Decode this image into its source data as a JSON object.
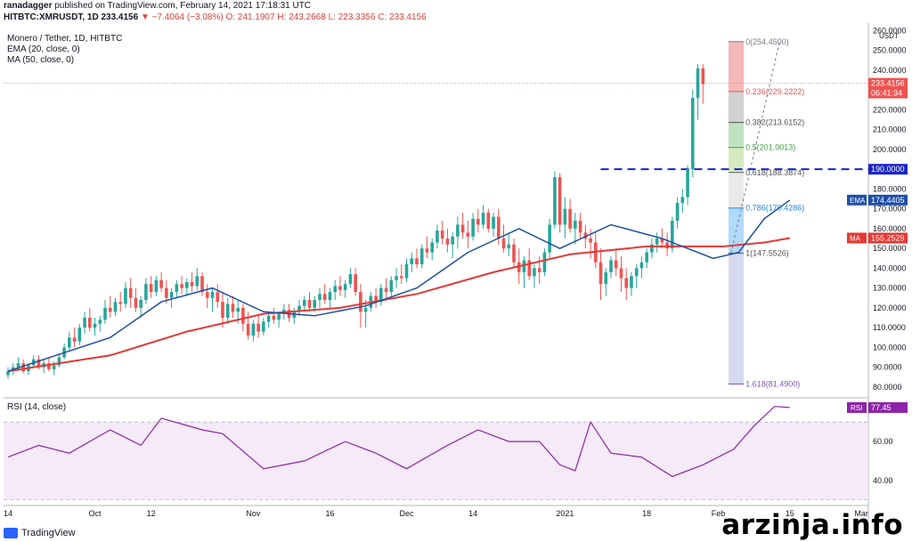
{
  "header": {
    "author": "ranadagger",
    "published": "published on TradingView.com, February 14, 2021 17:18:31 UTC",
    "symbol": "HITBTC:XMRUSDT, 1D",
    "last": "233.4156",
    "change": "▼ −7.4064 (−3.08%)",
    "o": "O: 241.1907",
    "h": "H: 243.2668",
    "lo": "L: 223.3356",
    "c": "C: 233.4156"
  },
  "legend": {
    "title": "Monero / Tether, 1D, HITBTC",
    "ema": "EMA (20, close, 0)",
    "ma": "MA (50, close, 0)",
    "rsi": "RSI (14, close)"
  },
  "footer": {
    "brand": "TradingView",
    "watermark": "arzinja.info"
  },
  "colors": {
    "up": "#26a69a",
    "down": "#ef5350",
    "ema": "#1e4fa8",
    "ma": "#e53935",
    "rsi": "#8e24aa",
    "support": "#1a24c9"
  },
  "chart_data": {
    "type": "candlestick",
    "currency_label": "USDT",
    "ylim": [
      75,
      262
    ],
    "y_ticks": [
      80,
      90,
      100,
      110,
      120,
      130,
      140,
      150,
      160,
      170,
      180,
      190,
      200,
      210,
      220,
      230,
      240,
      250,
      260
    ],
    "x_ticks": [
      {
        "label": "14",
        "day": 0
      },
      {
        "label": "Oct",
        "day": 17
      },
      {
        "label": "12",
        "day": 28
      },
      {
        "label": "Nov",
        "day": 48
      },
      {
        "label": "16",
        "day": 63
      },
      {
        "label": "Dec",
        "day": 78
      },
      {
        "label": "14",
        "day": 91
      },
      {
        "label": "2021",
        "day": 109
      },
      {
        "label": "18",
        "day": 125
      },
      {
        "label": "Feb",
        "day": 139
      },
      {
        "label": "15",
        "day": 153
      },
      {
        "label": "Mar",
        "day": 167
      }
    ],
    "last_day": 153,
    "ohlc": [
      [
        86,
        90,
        84,
        88
      ],
      [
        88,
        92,
        86,
        90
      ],
      [
        90,
        95,
        88,
        92
      ],
      [
        92,
        94,
        87,
        88
      ],
      [
        88,
        92,
        86,
        91
      ],
      [
        91,
        96,
        90,
        94
      ],
      [
        94,
        96,
        89,
        90
      ],
      [
        90,
        94,
        87,
        92
      ],
      [
        92,
        95,
        88,
        89
      ],
      [
        89,
        93,
        86,
        91
      ],
      [
        91,
        97,
        90,
        95
      ],
      [
        95,
        102,
        94,
        100
      ],
      [
        100,
        108,
        98,
        105
      ],
      [
        105,
        110,
        100,
        103
      ],
      [
        103,
        112,
        101,
        110
      ],
      [
        110,
        118,
        107,
        115
      ],
      [
        115,
        120,
        108,
        110
      ],
      [
        110,
        115,
        106,
        112
      ],
      [
        112,
        116,
        108,
        114
      ],
      [
        114,
        124,
        112,
        120
      ],
      [
        120,
        126,
        115,
        118
      ],
      [
        118,
        125,
        116,
        123
      ],
      [
        123,
        128,
        118,
        122
      ],
      [
        122,
        133,
        120,
        130
      ],
      [
        130,
        135,
        120,
        125
      ],
      [
        125,
        130,
        118,
        120
      ],
      [
        120,
        126,
        115,
        124
      ],
      [
        124,
        135,
        122,
        132
      ],
      [
        132,
        136,
        125,
        128
      ],
      [
        128,
        136,
        126,
        134
      ],
      [
        134,
        138,
        128,
        130
      ],
      [
        130,
        134,
        122,
        125
      ],
      [
        125,
        130,
        120,
        128
      ],
      [
        128,
        134,
        125,
        132
      ],
      [
        132,
        136,
        127,
        130
      ],
      [
        130,
        135,
        126,
        133
      ],
      [
        133,
        138,
        128,
        131
      ],
      [
        131,
        140,
        129,
        136
      ],
      [
        136,
        138,
        126,
        128
      ],
      [
        128,
        132,
        120,
        125
      ],
      [
        125,
        130,
        118,
        128
      ],
      [
        128,
        132,
        120,
        123
      ],
      [
        123,
        128,
        110,
        115
      ],
      [
        115,
        125,
        112,
        122
      ],
      [
        122,
        126,
        115,
        118
      ],
      [
        118,
        124,
        112,
        120
      ],
      [
        120,
        122,
        108,
        112
      ],
      [
        112,
        118,
        104,
        106
      ],
      [
        106,
        114,
        103,
        112
      ],
      [
        112,
        116,
        105,
        108
      ],
      [
        108,
        115,
        106,
        113
      ],
      [
        113,
        118,
        110,
        116
      ],
      [
        116,
        120,
        112,
        114
      ],
      [
        114,
        118,
        110,
        117
      ],
      [
        117,
        122,
        114,
        119
      ],
      [
        119,
        122,
        113,
        115
      ],
      [
        115,
        120,
        112,
        118
      ],
      [
        118,
        124,
        116,
        121
      ],
      [
        121,
        126,
        118,
        124
      ],
      [
        124,
        128,
        118,
        120
      ],
      [
        120,
        126,
        118,
        124
      ],
      [
        124,
        130,
        120,
        127
      ],
      [
        127,
        132,
        122,
        124
      ],
      [
        124,
        130,
        120,
        128
      ],
      [
        128,
        134,
        124,
        131
      ],
      [
        131,
        136,
        126,
        129
      ],
      [
        129,
        134,
        125,
        132
      ],
      [
        132,
        140,
        130,
        137
      ],
      [
        137,
        140,
        126,
        128
      ],
      [
        128,
        132,
        110,
        118
      ],
      [
        118,
        124,
        110,
        120
      ],
      [
        120,
        128,
        118,
        126
      ],
      [
        126,
        130,
        120,
        123
      ],
      [
        123,
        132,
        121,
        130
      ],
      [
        130,
        135,
        125,
        128
      ],
      [
        128,
        136,
        126,
        134
      ],
      [
        134,
        140,
        130,
        136
      ],
      [
        136,
        142,
        132,
        135
      ],
      [
        135,
        145,
        133,
        142
      ],
      [
        142,
        148,
        138,
        145
      ],
      [
        145,
        150,
        140,
        142
      ],
      [
        142,
        152,
        140,
        150
      ],
      [
        150,
        156,
        145,
        148
      ],
      [
        148,
        155,
        144,
        153
      ],
      [
        153,
        162,
        150,
        159
      ],
      [
        159,
        164,
        152,
        155
      ],
      [
        155,
        160,
        148,
        152
      ],
      [
        152,
        158,
        145,
        156
      ],
      [
        156,
        166,
        150,
        162
      ],
      [
        162,
        168,
        155,
        158
      ],
      [
        158,
        164,
        150,
        156
      ],
      [
        156,
        168,
        154,
        165
      ],
      [
        165,
        170,
        158,
        162
      ],
      [
        162,
        172,
        160,
        168
      ],
      [
        168,
        170,
        158,
        160
      ],
      [
        160,
        168,
        156,
        166
      ],
      [
        166,
        170,
        152,
        155
      ],
      [
        155,
        162,
        148,
        150
      ],
      [
        150,
        158,
        146,
        152
      ],
      [
        152,
        155,
        140,
        143
      ],
      [
        143,
        150,
        132,
        138
      ],
      [
        138,
        146,
        130,
        144
      ],
      [
        144,
        150,
        134,
        136
      ],
      [
        136,
        142,
        130,
        140
      ],
      [
        140,
        146,
        132,
        138
      ],
      [
        138,
        150,
        136,
        148
      ],
      [
        148,
        165,
        145,
        162
      ],
      [
        162,
        189,
        160,
        186
      ],
      [
        186,
        188,
        158,
        162
      ],
      [
        162,
        176,
        155,
        170
      ],
      [
        170,
        175,
        158,
        160
      ],
      [
        160,
        168,
        152,
        164
      ],
      [
        164,
        168,
        155,
        158
      ],
      [
        158,
        162,
        150,
        155
      ],
      [
        155,
        160,
        145,
        153
      ],
      [
        153,
        158,
        140,
        143
      ],
      [
        143,
        150,
        124,
        132
      ],
      [
        132,
        140,
        126,
        138
      ],
      [
        138,
        146,
        135,
        144
      ],
      [
        144,
        150,
        136,
        140
      ],
      [
        140,
        146,
        128,
        135
      ],
      [
        135,
        140,
        124,
        130
      ],
      [
        130,
        138,
        126,
        136
      ],
      [
        136,
        142,
        130,
        140
      ],
      [
        140,
        146,
        135,
        143
      ],
      [
        143,
        150,
        140,
        148
      ],
      [
        148,
        155,
        145,
        152
      ],
      [
        152,
        158,
        148,
        155
      ],
      [
        155,
        160,
        150,
        153
      ],
      [
        153,
        158,
        146,
        150
      ],
      [
        150,
        166,
        148,
        164
      ],
      [
        164,
        176,
        160,
        173
      ],
      [
        173,
        180,
        168,
        176
      ],
      [
        176,
        192,
        172,
        190
      ],
      [
        190,
        230,
        186,
        226
      ],
      [
        226,
        243,
        215,
        241
      ],
      [
        241,
        243,
        223,
        233
      ]
    ],
    "ema20_points": [
      [
        0,
        88
      ],
      [
        20,
        105
      ],
      [
        30,
        123
      ],
      [
        40,
        130
      ],
      [
        50,
        118
      ],
      [
        60,
        116
      ],
      [
        70,
        121
      ],
      [
        80,
        130
      ],
      [
        90,
        148
      ],
      [
        100,
        160
      ],
      [
        108,
        150
      ],
      [
        118,
        162
      ],
      [
        128,
        155
      ],
      [
        138,
        145
      ],
      [
        143,
        148
      ],
      [
        148,
        165
      ],
      [
        153,
        174.44
      ]
    ],
    "ma50_points": [
      [
        0,
        88
      ],
      [
        20,
        96
      ],
      [
        35,
        108
      ],
      [
        50,
        117
      ],
      [
        65,
        120
      ],
      [
        80,
        127
      ],
      [
        95,
        138
      ],
      [
        110,
        147
      ],
      [
        125,
        151
      ],
      [
        140,
        151
      ],
      [
        148,
        153
      ],
      [
        153,
        155.25
      ]
    ],
    "rsi_points": [
      [
        0,
        52
      ],
      [
        6,
        58
      ],
      [
        12,
        54
      ],
      [
        20,
        66
      ],
      [
        26,
        58
      ],
      [
        30,
        72
      ],
      [
        38,
        66
      ],
      [
        42,
        64
      ],
      [
        50,
        46
      ],
      [
        58,
        50
      ],
      [
        66,
        60
      ],
      [
        72,
        54
      ],
      [
        78,
        46
      ],
      [
        86,
        58
      ],
      [
        92,
        66
      ],
      [
        98,
        60
      ],
      [
        104,
        60
      ],
      [
        108,
        48
      ],
      [
        111,
        45
      ],
      [
        114,
        70
      ],
      [
        118,
        54
      ],
      [
        124,
        52
      ],
      [
        130,
        42
      ],
      [
        136,
        48
      ],
      [
        142,
        56
      ],
      [
        146,
        68
      ],
      [
        150,
        78
      ],
      [
        153,
        77.45
      ]
    ],
    "rsi_ylim": [
      28,
      82
    ],
    "rsi_ticks": [
      40,
      60
    ],
    "rsi_band": [
      30,
      70
    ],
    "price_labels": [
      {
        "text": "233.4156",
        "value": 233.4156,
        "color": "#ef5350"
      },
      {
        "text": "06:41:34",
        "value": 228.5,
        "color": "#ef5350"
      },
      {
        "text": "190.0000",
        "value": 190,
        "color": "#1a24c9"
      },
      {
        "text": "EMA",
        "tag": "174.4405",
        "value": 174.4405,
        "color": "#1e4fa8"
      },
      {
        "text": "MA",
        "tag": "155.2529",
        "value": 155.2529,
        "color": "#e53935"
      }
    ],
    "rsi_label": {
      "text": "RSI",
      "tag": "77.45",
      "value": 77.45
    },
    "support_level": 190,
    "fib": {
      "day_start": 141,
      "day_end": 151,
      "levels": [
        {
          "label": "0(254.4500)",
          "value": 254.45
        },
        {
          "label": "0.236(229.2222)",
          "value": 229.2222
        },
        {
          "label": "0.382(213.6152)",
          "value": 213.6152
        },
        {
          "label": "0.5(201.0013)",
          "value": 201.0013
        },
        {
          "label": "0.618(188.3874)",
          "value": 188.3874
        },
        {
          "label": "0.786(170.4286)",
          "value": 170.4286
        },
        {
          "label": "1(147.5526)",
          "value": 147.5526
        },
        {
          "label": "1.618(81.4900)",
          "value": 81.49
        }
      ]
    }
  }
}
